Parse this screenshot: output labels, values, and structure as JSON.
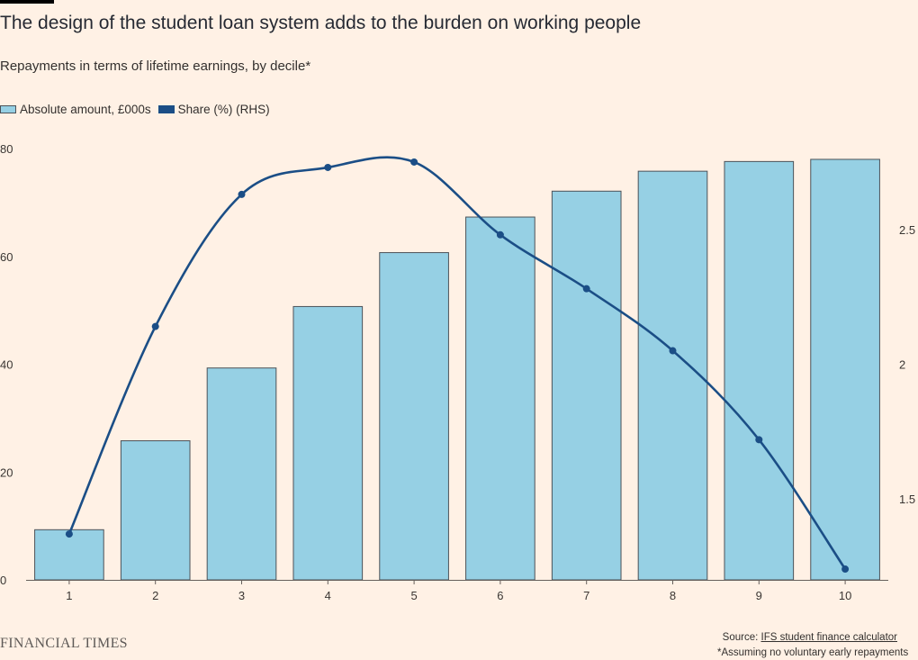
{
  "header": {
    "title": "The design of the student loan system adds to the burden on working people",
    "subtitle": "Repayments in terms of lifetime earnings, by decile*"
  },
  "legend": {
    "bar_label": "Absolute amount, £000s",
    "line_label": "Share (%) (RHS)"
  },
  "footer": {
    "brand": "FINANCIAL TIMES",
    "source_prefix": "Source: ",
    "source_link": "IFS student finance calculator",
    "note": "*Assuming no voluntary early repayments"
  },
  "colors": {
    "bar_fill": "#96d0e4",
    "bar_stroke": "#4c5258",
    "line": "#1b4e86",
    "background": "#fff1e5"
  },
  "chart_data": {
    "type": "bar",
    "categories": [
      "1",
      "2",
      "3",
      "4",
      "5",
      "6",
      "7",
      "8",
      "9",
      "10"
    ],
    "series": [
      {
        "name": "Absolute amount, £000s",
        "type": "bar",
        "axis": "left",
        "values": [
          9.3,
          25.8,
          39.3,
          50.7,
          60.7,
          67.3,
          72.1,
          75.8,
          77.6,
          78.0
        ]
      },
      {
        "name": "Share (%) (RHS)",
        "type": "line",
        "axis": "right",
        "values": [
          1.37,
          2.14,
          2.63,
          2.73,
          2.75,
          2.48,
          2.28,
          2.05,
          1.72,
          1.24
        ]
      }
    ],
    "y_left": {
      "ticks": [
        "0",
        "20",
        "40",
        "60",
        "80"
      ],
      "ylim": [
        0,
        80
      ]
    },
    "y_right": {
      "ticks": [
        "1.5",
        "2",
        "2.5"
      ],
      "ylim": [
        1.2,
        2.8
      ]
    }
  }
}
